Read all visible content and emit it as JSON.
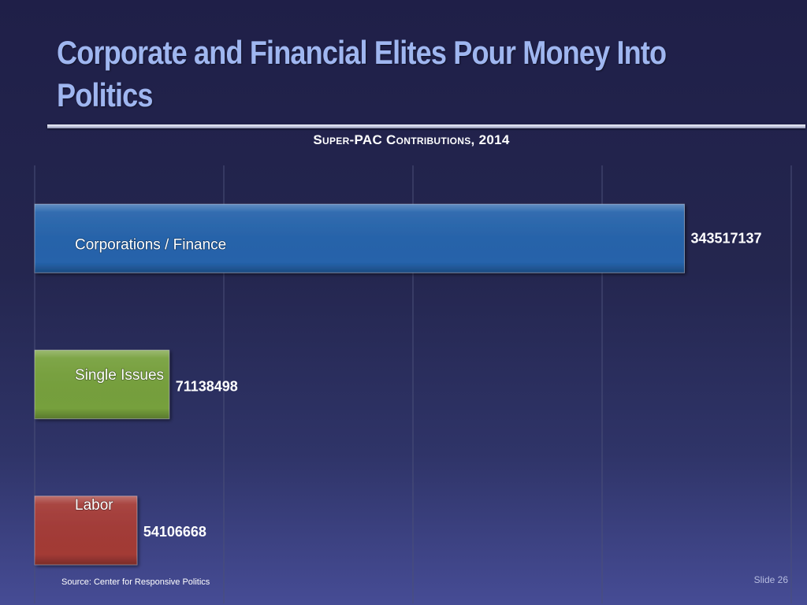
{
  "slide": {
    "title": "Corporate and Financial Elites Pour Money Into Politics",
    "source": "Source:  Center for Responsive Politics",
    "slide_number": "Slide 26"
  },
  "chart_data": {
    "type": "bar",
    "orientation": "horizontal",
    "title": "Super-PAC Contributions, 2014",
    "categories": [
      "Corporations / Finance",
      "Single Issues",
      "Labor"
    ],
    "values": [
      343517137,
      71138498,
      54106668
    ],
    "value_labels": [
      "343517137",
      "71138498",
      "54106668"
    ],
    "colors": [
      "#2563ab",
      "#76a03c",
      "#a33a36"
    ],
    "xlim": [
      0,
      400000000
    ],
    "grid": true,
    "legend": "none",
    "category_labels_inside_bars": true
  }
}
